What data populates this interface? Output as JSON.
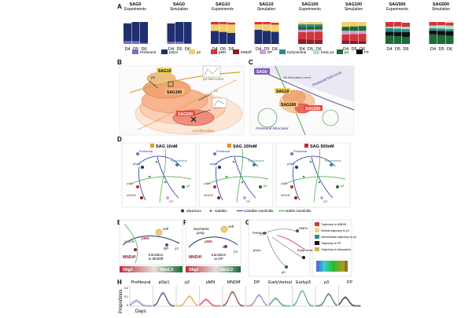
{
  "panels": {
    "A": "A",
    "B": "B",
    "C": "C",
    "D": "D",
    "E": "E",
    "F": "F",
    "G": "G",
    "H": "H"
  },
  "panelA": {
    "groups": [
      {
        "title": "SAG0",
        "sub": "Experiments"
      },
      {
        "title": "SAG0",
        "sub": "Simulation"
      },
      {
        "title": "SAG10",
        "sub": "Experiments"
      },
      {
        "title": "SAG10",
        "sub": "Simulation"
      },
      {
        "title": "SAG100",
        "sub": "Experiments"
      },
      {
        "title": "SAG100",
        "sub": "Simulation"
      },
      {
        "title": "SAG500",
        "sub": "Experiments"
      },
      {
        "title": "SAG500",
        "sub": "Simulation"
      }
    ],
    "days": [
      "D4",
      "D5",
      "D6"
    ],
    "legend": [
      {
        "label": "PreNeural",
        "color": "#7b6fc2"
      },
      {
        "label": "p0/p1",
        "color": "#1f2f6e"
      },
      {
        "label": "p2",
        "color": "#f2cf6b"
      },
      {
        "label": "pMN",
        "color": "#d2343c"
      },
      {
        "label": "MNDiff",
        "color": "#8a1f2a"
      },
      {
        "label": "DP",
        "color": "#c8a2d8"
      },
      {
        "label": "EarlyVentral",
        "color": "#2e8a8c"
      },
      {
        "label": "Early p3",
        "color": "#b4e0c6"
      },
      {
        "label": "p3",
        "color": "#1e6b3a"
      },
      {
        "label": "FP",
        "color": "#111111"
      }
    ]
  },
  "panelB": {
    "labels": {
      "sag10": "SAG10",
      "sag100": "SAG100",
      "sag500": "SAG500",
      "p2curve": "p2-fold curve",
      "p0": "p0",
      "p2": "p2",
      "bif": "p3 bifurcation",
      "pmn": "pMN"
    }
  },
  "panelC": {
    "labels": {
      "sag0": "SAG0",
      "sag10": "SAG10",
      "sag100": "SAG100",
      "sag500": "SAG500",
      "flip": "flip bifurcation curve",
      "fold": "Preneural fold curve",
      "prebif": "PreNeural bifurcated"
    }
  },
  "panelD": {
    "titles": [
      "SAG 10nM",
      "SAG 100nM",
      "SAG 500nM"
    ],
    "legend": [
      "attractors",
      "saddles",
      "unstable manifolds",
      "stable manifolds"
    ]
  },
  "panelE": {
    "labels": {
      "cell": "cell",
      "saddle": "saddle",
      "mndiff": "MNDiff",
      "transition": "transition\nto MNDiff",
      "pmn": "pMN",
      "dp": "DP",
      "p3": "p3",
      "olig2": "Olig2",
      "nkx": "Nkx2.2"
    }
  },
  "panelF": {
    "labels": {
      "cell": "cell",
      "stochastic": "stochastic\njump",
      "transition": "transition\nto DP",
      "pmn": "pMN",
      "mndiff": "MNDiff",
      "dp": "DP",
      "p3": "p3",
      "olig2": "Olig2",
      "nkx": "Nkx2.2"
    }
  },
  "panelG": {
    "legend": [
      "Trajectory to MNDiff",
      "Ventral trajectory to p3",
      "Intermediate trajectory to p3",
      "Trajectory to FP",
      "Trajectory to Mesoderm"
    ]
  },
  "panelH": {
    "ylabel": "Proportions",
    "xlabel": "Days",
    "categories": [
      "PreNeural",
      "p0/p1",
      "p2",
      "pMN",
      "MNDiff",
      "DP",
      "EarlyVentral",
      "Earlyp3",
      "p3",
      "FP"
    ],
    "yticks": [
      "0.2",
      "0.1",
      "0"
    ]
  }
}
